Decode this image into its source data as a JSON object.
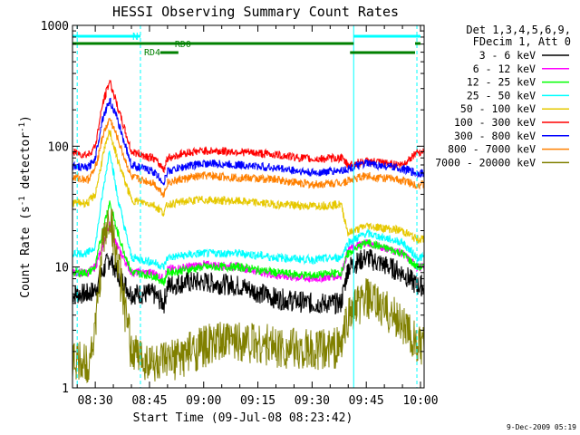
{
  "chart_data": {
    "type": "line",
    "title": "HESSI Observing Summary Count Rates",
    "xlabel": "Start Time (09-Jul-08 08:23:42)",
    "ylabel_main": "Count Rate (s",
    "ylabel_sup1": "-1",
    "ylabel_mid": " detector",
    "ylabel_sup2": "-1",
    "ylabel_end": ")",
    "yscale": "log",
    "ylim": [
      1,
      1000
    ],
    "xlim": [
      "08:23:42",
      "10:01:00"
    ],
    "x_ticks": [
      "08:30",
      "08:45",
      "09:00",
      "09:15",
      "09:30",
      "09:45",
      "10:00"
    ],
    "y_ticks": [
      "1",
      "10",
      "100",
      "1000"
    ],
    "footer": "9-Dec-2009 05:19",
    "legend": {
      "position": "top-right",
      "header_line1": "Det 1,3,4,5,6,9,",
      "header_line2": "FDecim 1, Att 0"
    },
    "annotations": {
      "night_label": "N",
      "rd0_label": "RD0",
      "rd4_label": "RD4"
    },
    "series": [
      {
        "name": "3 - 6 keV",
        "color": "#000000",
        "x": [
          "08:24",
          "08:28",
          "08:30",
          "08:32",
          "08:34",
          "08:36",
          "08:40",
          "08:46",
          "08:49",
          "08:50",
          "08:55",
          "09:00",
          "09:10",
          "09:20",
          "09:30",
          "09:38",
          "09:40",
          "09:45",
          "09:55",
          "09:59"
        ],
        "y": [
          6,
          6,
          6.5,
          9,
          12,
          9,
          6,
          6,
          5,
          7,
          7.5,
          7.5,
          7,
          5.5,
          5,
          5,
          10,
          12,
          9,
          7
        ]
      },
      {
        "name": "6 - 12 keV",
        "color": "#ff00ff",
        "x": [
          "08:24",
          "08:28",
          "08:30",
          "08:32",
          "08:34",
          "08:36",
          "08:40",
          "08:46",
          "08:49",
          "08:50",
          "08:55",
          "09:00",
          "09:10",
          "09:20",
          "09:30",
          "09:38",
          "09:40",
          "09:45",
          "09:55",
          "09:59"
        ],
        "y": [
          9,
          9,
          10,
          15,
          22,
          15,
          9,
          9,
          8,
          9.5,
          10,
          10.5,
          10,
          8.5,
          8,
          8.5,
          14,
          16,
          13,
          10
        ]
      },
      {
        "name": "12 - 25 keV",
        "color": "#00ff00",
        "x": [
          "08:24",
          "08:28",
          "08:30",
          "08:32",
          "08:34",
          "08:36",
          "08:40",
          "08:46",
          "08:49",
          "08:50",
          "08:55",
          "09:00",
          "09:10",
          "09:20",
          "09:30",
          "09:38",
          "09:40",
          "09:45",
          "09:55",
          "09:59"
        ],
        "y": [
          9,
          9,
          10,
          20,
          35,
          20,
          9,
          8.5,
          7.5,
          9,
          9.5,
          10,
          10,
          9,
          8.5,
          9,
          13,
          16,
          13,
          10
        ]
      },
      {
        "name": "25 - 50 keV",
        "color": "#00ffff",
        "x": [
          "08:24",
          "08:28",
          "08:30",
          "08:32",
          "08:34",
          "08:36",
          "08:40",
          "08:46",
          "08:49",
          "08:50",
          "08:55",
          "09:00",
          "09:10",
          "09:20",
          "09:30",
          "09:38",
          "09:40",
          "09:45",
          "09:55",
          "09:59"
        ],
        "y": [
          13,
          13,
          15,
          40,
          95,
          40,
          12,
          11,
          10,
          12,
          12.5,
          13,
          13,
          12,
          11.5,
          12,
          16,
          19,
          16,
          12
        ]
      },
      {
        "name": "50 - 100 keV",
        "color": "#e6c800",
        "x": [
          "08:24",
          "08:28",
          "08:30",
          "08:32",
          "08:34",
          "08:36",
          "08:40",
          "08:46",
          "08:49",
          "08:50",
          "08:55",
          "09:00",
          "09:10",
          "09:20",
          "09:30",
          "09:38",
          "09:40",
          "09:45",
          "09:55",
          "09:59"
        ],
        "y": [
          34,
          34,
          40,
          80,
          135,
          80,
          36,
          33,
          28,
          33,
          35,
          36,
          35,
          33,
          32,
          33,
          19,
          22,
          20,
          17
        ]
      },
      {
        "name": "100 - 300 keV",
        "color": "#ff0000",
        "x": [
          "08:24",
          "08:28",
          "08:30",
          "08:32",
          "08:34",
          "08:36",
          "08:40",
          "08:46",
          "08:49",
          "08:50",
          "08:55",
          "09:00",
          "09:10",
          "09:20",
          "09:30",
          "09:38",
          "09:40",
          "09:45",
          "09:55",
          "09:59"
        ],
        "y": [
          88,
          85,
          100,
          220,
          350,
          220,
          90,
          80,
          65,
          80,
          88,
          92,
          90,
          85,
          78,
          80,
          70,
          75,
          70,
          90
        ]
      },
      {
        "name": "300 - 800 keV",
        "color": "#0000ff",
        "x": [
          "08:24",
          "08:28",
          "08:30",
          "08:32",
          "08:34",
          "08:36",
          "08:40",
          "08:46",
          "08:49",
          "08:50",
          "08:55",
          "09:00",
          "09:10",
          "09:20",
          "09:30",
          "09:38",
          "09:40",
          "09:45",
          "09:55",
          "09:59"
        ],
        "y": [
          68,
          66,
          80,
          170,
          240,
          170,
          70,
          62,
          50,
          62,
          68,
          72,
          70,
          66,
          60,
          63,
          65,
          72,
          65,
          60
        ]
      },
      {
        "name": "800 - 7000 keV",
        "color": "#ff8000",
        "x": [
          "08:24",
          "08:28",
          "08:30",
          "08:32",
          "08:34",
          "08:36",
          "08:40",
          "08:46",
          "08:49",
          "08:50",
          "08:55",
          "09:00",
          "09:10",
          "09:20",
          "09:30",
          "09:38",
          "09:40",
          "09:45",
          "09:55",
          "09:59"
        ],
        "y": [
          55,
          53,
          65,
          120,
          170,
          120,
          55,
          50,
          40,
          50,
          54,
          57,
          55,
          53,
          48,
          50,
          52,
          57,
          52,
          48
        ]
      },
      {
        "name": "7000 - 20000 keV",
        "color": "#808000",
        "x": [
          "08:24",
          "08:28",
          "08:30",
          "08:32",
          "08:34",
          "08:36",
          "08:40",
          "08:46",
          "08:49",
          "08:50",
          "08:55",
          "09:00",
          "09:10",
          "09:20",
          "09:30",
          "09:38",
          "09:40",
          "09:45",
          "09:55",
          "09:59"
        ],
        "y": [
          1.6,
          1.6,
          3,
          15,
          27,
          12,
          2,
          1.6,
          1.6,
          1.6,
          1.9,
          2.2,
          2.5,
          2.2,
          2,
          2.2,
          4,
          5.5,
          3.5,
          2.2
        ]
      }
    ]
  }
}
